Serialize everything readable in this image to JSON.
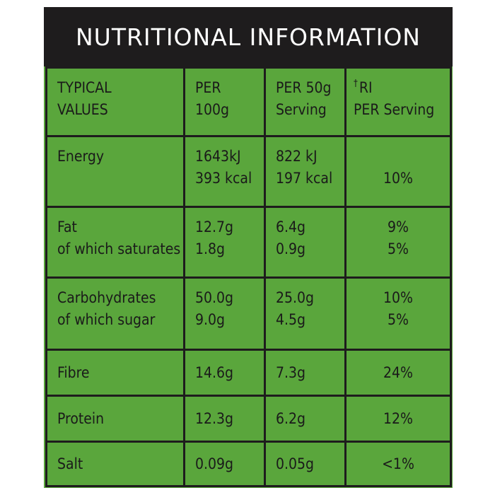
{
  "title": "NUTRITIONAL INFORMATION",
  "colors": {
    "panel_green": "#5aa63c",
    "title_black": "#1e1c1d",
    "title_text": "#ffffff",
    "cell_text": "#1a1a1a"
  },
  "headers": {
    "col1": [
      "TYPICAL",
      "VALUES"
    ],
    "col2": [
      "PER",
      "100g"
    ],
    "col3": [
      "PER 50g",
      "Serving"
    ],
    "col4_mark": "†",
    "col4": [
      "RI",
      "PER Serving"
    ]
  },
  "rows": [
    {
      "nutrient": [
        "Energy"
      ],
      "per100g": [
        "1643kJ",
        "393 kcal"
      ],
      "per50g": [
        "822 kJ",
        "197 kcal"
      ],
      "ri": [
        "",
        "10%"
      ]
    },
    {
      "nutrient": [
        "Fat",
        "of which saturates"
      ],
      "per100g": [
        "12.7g",
        "1.8g"
      ],
      "per50g": [
        "6.4g",
        "0.9g"
      ],
      "ri": [
        "9%",
        "5%"
      ]
    },
    {
      "nutrient": [
        "Carbohydrates",
        "of which sugar"
      ],
      "per100g": [
        "50.0g",
        "9.0g"
      ],
      "per50g": [
        "25.0g",
        "4.5g"
      ],
      "ri": [
        "10%",
        "5%"
      ]
    },
    {
      "nutrient": [
        "Fibre"
      ],
      "per100g": [
        "14.6g"
      ],
      "per50g": [
        "7.3g"
      ],
      "ri": [
        "24%"
      ]
    },
    {
      "nutrient": [
        "Protein"
      ],
      "per100g": [
        "12.3g"
      ],
      "per50g": [
        "6.2g"
      ],
      "ri": [
        "12%"
      ]
    },
    {
      "nutrient": [
        "Salt"
      ],
      "per100g": [
        "0.09g"
      ],
      "per50g": [
        "0.05g"
      ],
      "ri": [
        "<1%"
      ]
    }
  ]
}
